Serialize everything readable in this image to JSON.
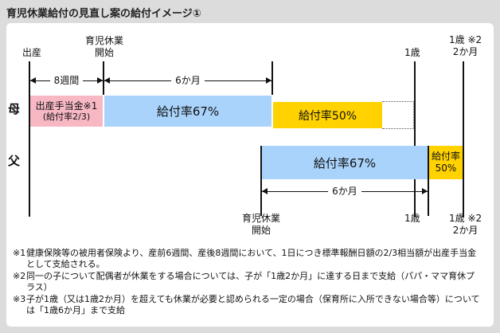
{
  "title": "育児休業給付の見直し案の給付イメージ①",
  "top_labels": {
    "birth": "出産",
    "leave_start": [
      "育児休業",
      "開始"
    ],
    "age_1": "1歳",
    "age_1_2m": [
      "1歳 ※2",
      "2か月"
    ]
  },
  "durations": {
    "weeks8": "8週間",
    "months6_mother": "6か月",
    "months6_father": "6か月"
  },
  "rows": {
    "mother": "母",
    "father": "父"
  },
  "bars": {
    "maternity": [
      "出産手当金※1",
      "(給付率2/3)"
    ],
    "mother_67": "給付率67%",
    "mother_50": "給付率50%",
    "father_67": "給付率67%",
    "father_50": [
      "給付率",
      "50%"
    ]
  },
  "bottom_labels": {
    "leave_start": [
      "育児休業",
      "開始"
    ],
    "age_1": "1歳",
    "age_1_2m": [
      "1歳 ※2",
      "2か月"
    ]
  },
  "notes": [
    {
      "mark": "※1",
      "text": "健康保険等の被用者保険より、産前6週間、産後8週間において、1日につき標準報酬日額の2/3相当額が出産手当金として支給される。"
    },
    {
      "mark": "※2",
      "text": "同一の子について配偶者が休業をする場合については、子が「1歳2か月」に達する日まで支給（パパ・ママ育休プラス）"
    },
    {
      "mark": "※3",
      "text": "子が1歳（又は1歳2か月）を超えても休業が必要と認められる一定の場合（保育所に入所できない場合等）については「1歳6か月」まで支給"
    }
  ],
  "colors": {
    "pink": "#f7b8c4",
    "blue": "#a9d3fb",
    "yellow": "#ffd200",
    "background": "#dcdcdc"
  }
}
